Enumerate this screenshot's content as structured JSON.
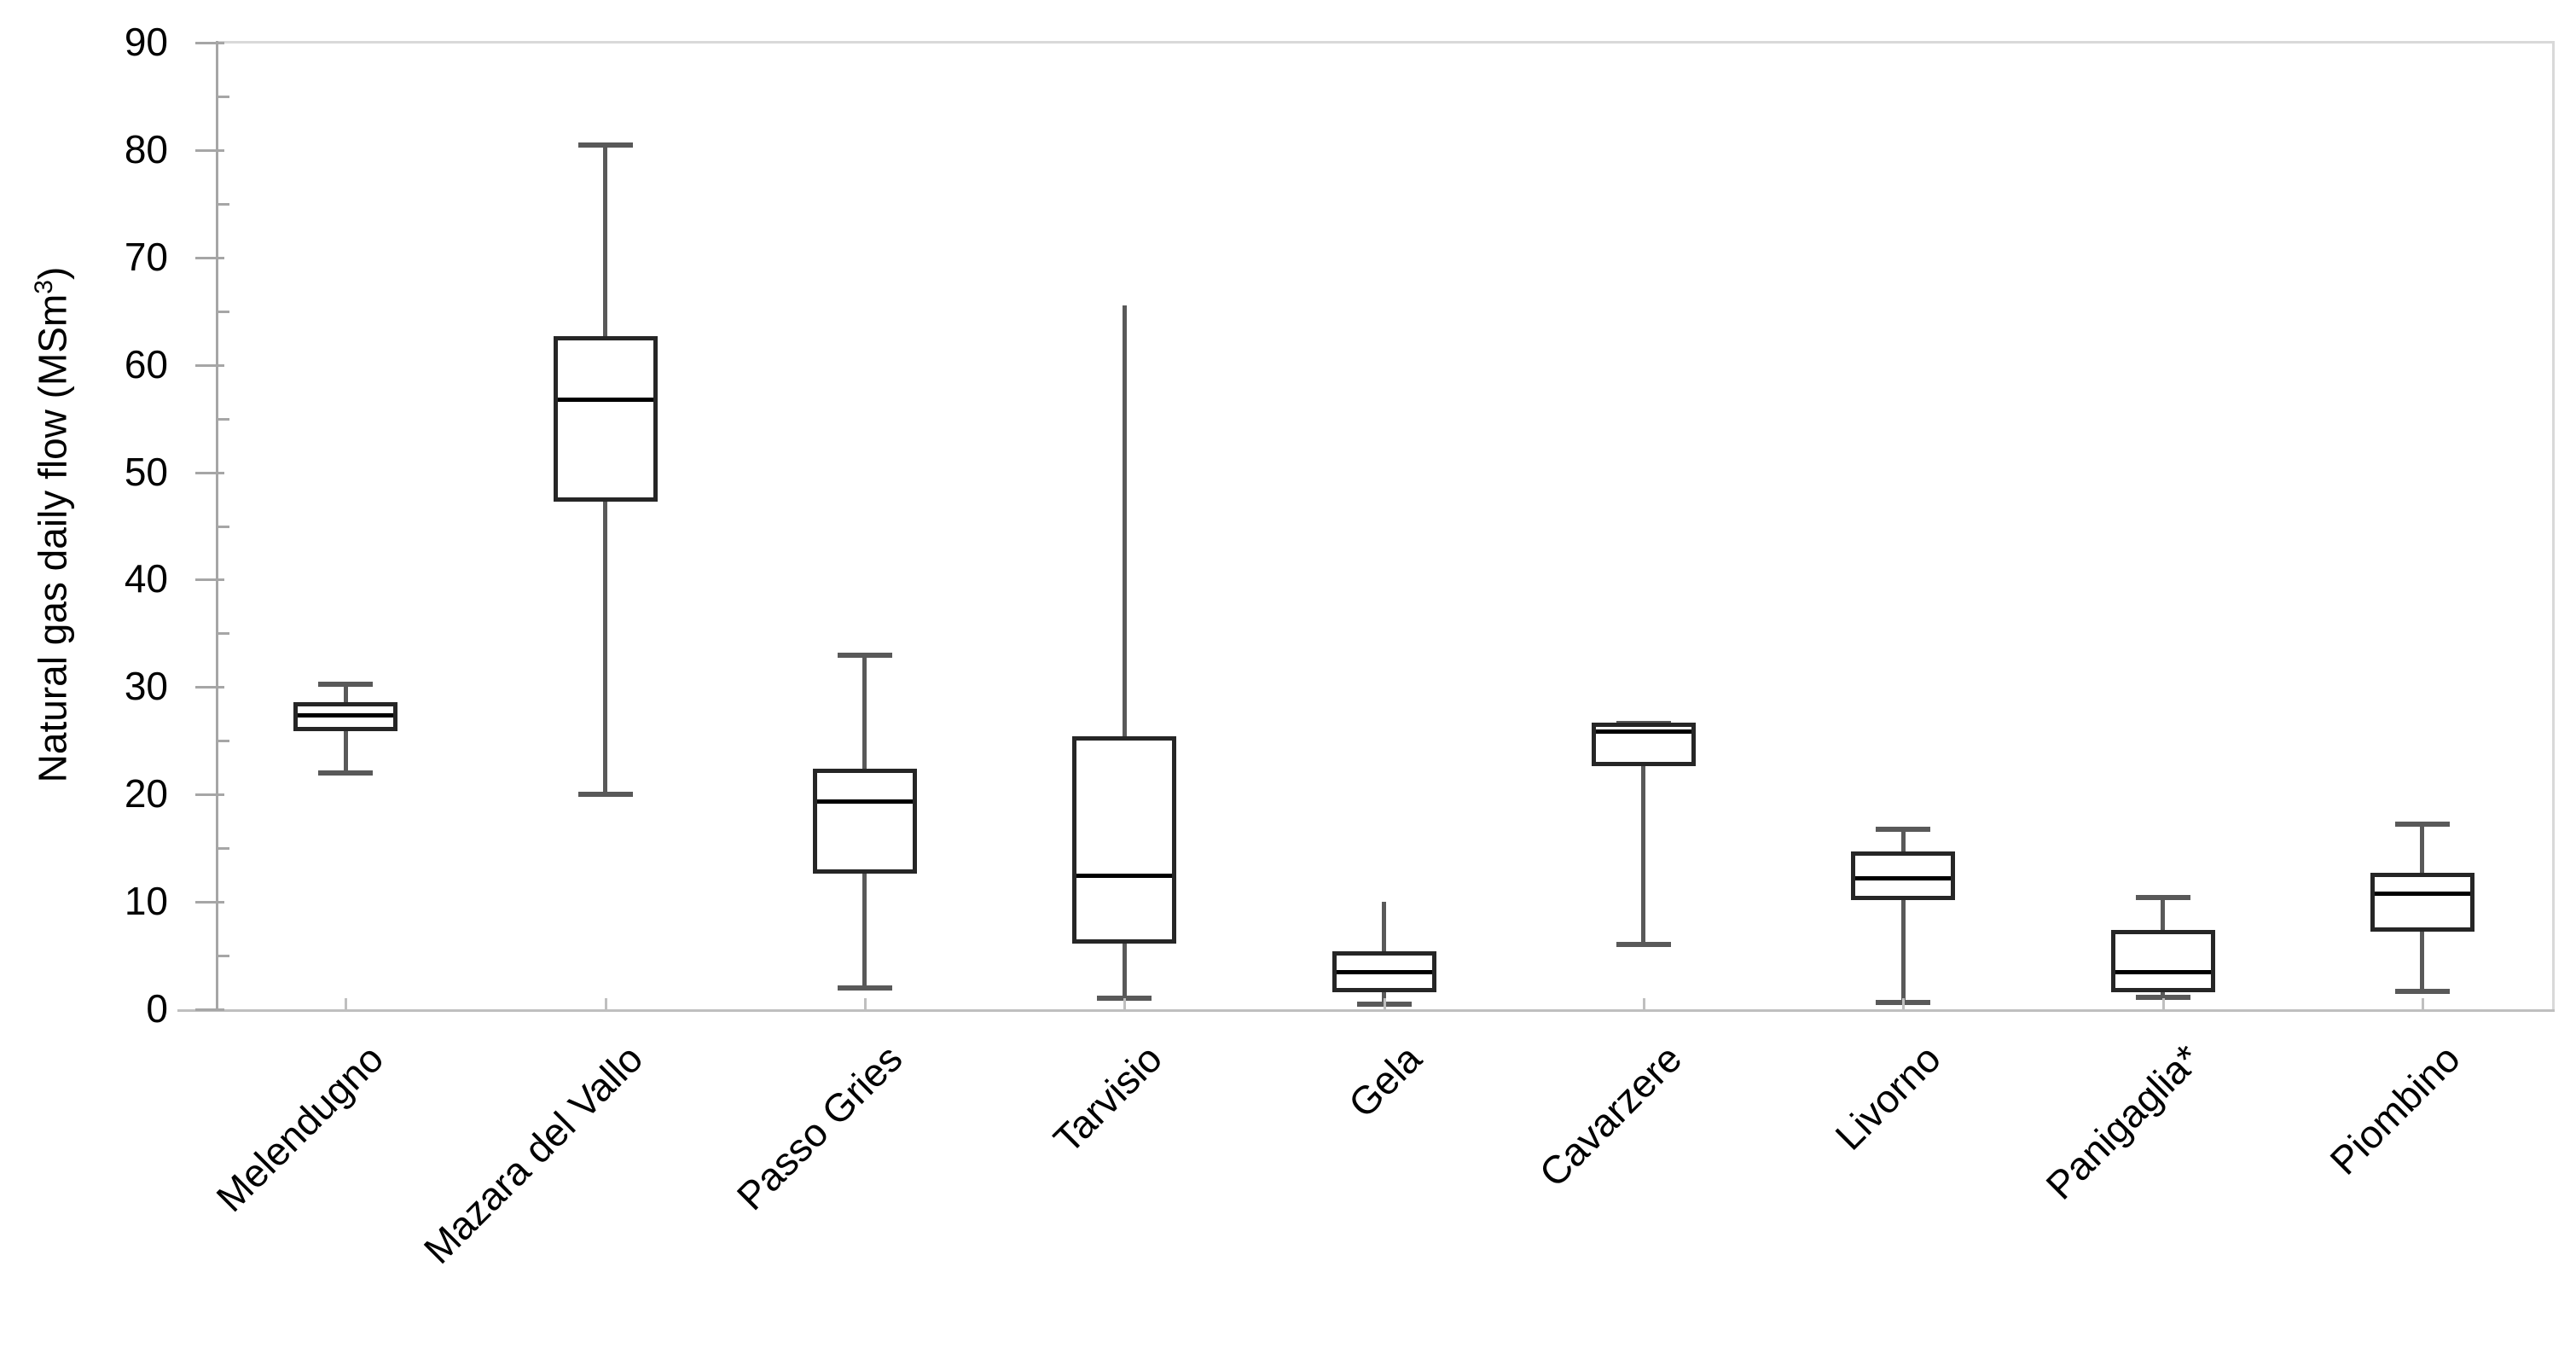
{
  "chart_data": {
    "type": "boxplot",
    "title": "",
    "ylabel_prefix": "Natural gas daily flow (MSm",
    "ylabel_sup": "3",
    "ylabel_suffix": ")",
    "ylabel_full": "Natural gas daily flow (MSm3)",
    "ylim": [
      0,
      90
    ],
    "ytick_step": 10,
    "yminor_step": 5,
    "yticks": [
      0,
      10,
      20,
      30,
      40,
      50,
      60,
      70,
      80,
      90
    ],
    "grid": false,
    "legend": "none",
    "categories": [
      "Melendugno",
      "Mazara del Vallo",
      "Passo Gries",
      "Tarvisio",
      "Gela",
      "Cavarzere",
      "Livorno",
      "Panigaglia*",
      "Piombino"
    ],
    "series": [
      {
        "label": "Melendugno",
        "low": 22,
        "q1": 26.3,
        "median": 27.4,
        "q3": 28.2,
        "high": 30.3,
        "cap_top": true,
        "cap_bottom": true
      },
      {
        "label": "Mazara del Vallo",
        "low": 20,
        "q1": 47.7,
        "median": 56.8,
        "q3": 62.3,
        "high": 80.5,
        "cap_top": true,
        "cap_bottom": true
      },
      {
        "label": "Passo Gries",
        "low": 2,
        "q1": 13,
        "median": 19.4,
        "q3": 22,
        "high": 33,
        "cap_top": true,
        "cap_bottom": true
      },
      {
        "label": "Tarvisio",
        "low": 1,
        "q1": 6.5,
        "median": 12.5,
        "q3": 25,
        "high": 65.5,
        "cap_top": false,
        "cap_bottom": true
      },
      {
        "label": "Gela",
        "low": 0.5,
        "q1": 2,
        "median": 3.5,
        "q3": 5,
        "high": 10,
        "cap_top": false,
        "cap_bottom": true
      },
      {
        "label": "Cavarzere",
        "low": 6,
        "q1": 23,
        "median": 25.9,
        "q3": 26.3,
        "high": 26.6,
        "cap_top": true,
        "cap_bottom": true
      },
      {
        "label": "Livorno",
        "low": 0.6,
        "q1": 10.6,
        "median": 12.2,
        "q3": 14.3,
        "high": 16.8,
        "cap_top": true,
        "cap_bottom": true
      },
      {
        "label": "Panigaglia*",
        "low": 1.1,
        "q1": 2,
        "median": 3.5,
        "q3": 7,
        "high": 10.4,
        "cap_top": true,
        "cap_bottom": true
      },
      {
        "label": "Piombino",
        "low": 1.7,
        "q1": 7.6,
        "median": 10.8,
        "q3": 12.3,
        "high": 17.2,
        "cap_top": true,
        "cap_bottom": true
      }
    ],
    "colors": {
      "box_border": "#262626",
      "box_fill": "#ffffff",
      "median": "#000000",
      "whisker": "#595959",
      "whisker_cap": "#595959",
      "axis": "#a6a6a6",
      "baseline": "#bfbfbf",
      "plot_border": "#d9d9d9",
      "text": "#000000"
    }
  }
}
